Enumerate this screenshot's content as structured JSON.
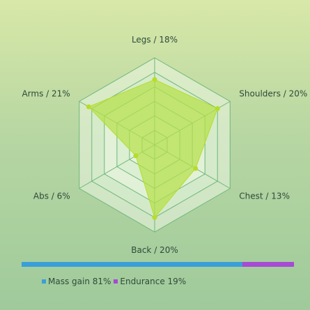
{
  "chart_data": [
    {
      "type": "radar",
      "categories": [
        "Legs / 18%",
        "Shoulders / 20%",
        "Chest / 13%",
        "Back / 20%",
        "Abs / 6%",
        "Arms / 21%"
      ],
      "values": [
        18,
        20,
        13,
        20,
        6,
        21
      ],
      "rmax": 24,
      "grid_levels": 6,
      "fill_color": "#b5e04a",
      "point_color": "#b6dd2a",
      "grid_color": "#6fb77a"
    },
    {
      "type": "bar",
      "orientation": "horizontal-stacked",
      "series": [
        {
          "name": "Mass gain 81%",
          "value": 81,
          "color": "#3a9fd8"
        },
        {
          "name": "Endurance 19%",
          "value": 19,
          "color": "#a64bd4"
        }
      ]
    }
  ]
}
